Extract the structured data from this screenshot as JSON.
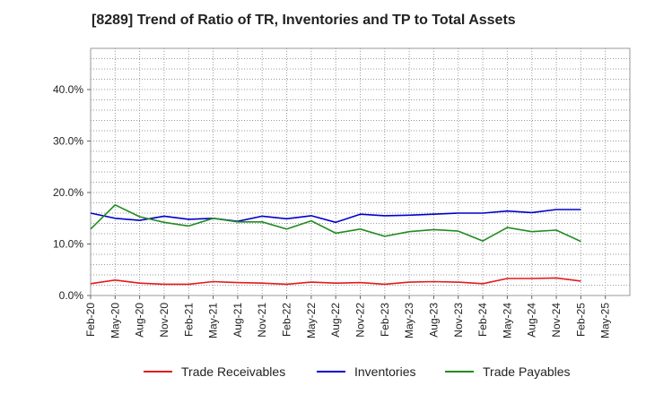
{
  "chart_data": {
    "type": "line",
    "title": "[8289]  Trend of Ratio of TR, Inventories and TP to Total Assets",
    "xlabel": "",
    "ylabel": "",
    "x_tick_labels": [
      "Feb-20",
      "May-20",
      "Aug-20",
      "Nov-20",
      "Feb-21",
      "May-21",
      "Aug-21",
      "Nov-21",
      "Feb-22",
      "May-22",
      "Aug-22",
      "Nov-22",
      "Feb-23",
      "May-23",
      "Aug-23",
      "Nov-23",
      "Feb-24",
      "May-24",
      "Aug-24",
      "Nov-24",
      "Feb-25",
      "May-25"
    ],
    "y_tick_labels": [
      "0.0%",
      "10.0%",
      "20.0%",
      "30.0%",
      "40.0%"
    ],
    "y_ticks": [
      0,
      10,
      20,
      30,
      40
    ],
    "ylim": [
      0,
      48
    ],
    "grid": true,
    "legend_position": "bottom",
    "x": [
      "Feb-20",
      "May-20",
      "Aug-20",
      "Nov-20",
      "Feb-21",
      "May-21",
      "Aug-21",
      "Nov-21",
      "Feb-22",
      "May-22",
      "Aug-22",
      "Nov-22",
      "Feb-23",
      "May-23",
      "Aug-23",
      "Nov-23",
      "Feb-24",
      "May-24",
      "Aug-24",
      "Nov-24",
      "Feb-25"
    ],
    "series": [
      {
        "name": "Trade Receivables",
        "color": "#e31a1c",
        "values": [
          2.3,
          3.0,
          2.4,
          2.2,
          2.2,
          2.7,
          2.5,
          2.4,
          2.2,
          2.6,
          2.4,
          2.5,
          2.2,
          2.6,
          2.7,
          2.6,
          2.3,
          3.3,
          3.3,
          3.4,
          2.8
        ]
      },
      {
        "name": "Inventories",
        "color": "#0000cc",
        "values": [
          16.0,
          15.0,
          14.6,
          15.4,
          14.8,
          15.0,
          14.4,
          15.4,
          14.9,
          15.5,
          14.2,
          15.8,
          15.5,
          15.6,
          15.8,
          16.0,
          16.0,
          16.4,
          16.1,
          16.7,
          16.7
        ]
      },
      {
        "name": "Trade Payables",
        "color": "#228b22",
        "values": [
          12.9,
          17.6,
          15.3,
          14.2,
          13.5,
          15.0,
          14.3,
          14.3,
          12.9,
          14.5,
          12.1,
          12.9,
          11.5,
          12.4,
          12.8,
          12.5,
          10.6,
          13.2,
          12.4,
          12.7,
          10.5
        ]
      }
    ]
  }
}
